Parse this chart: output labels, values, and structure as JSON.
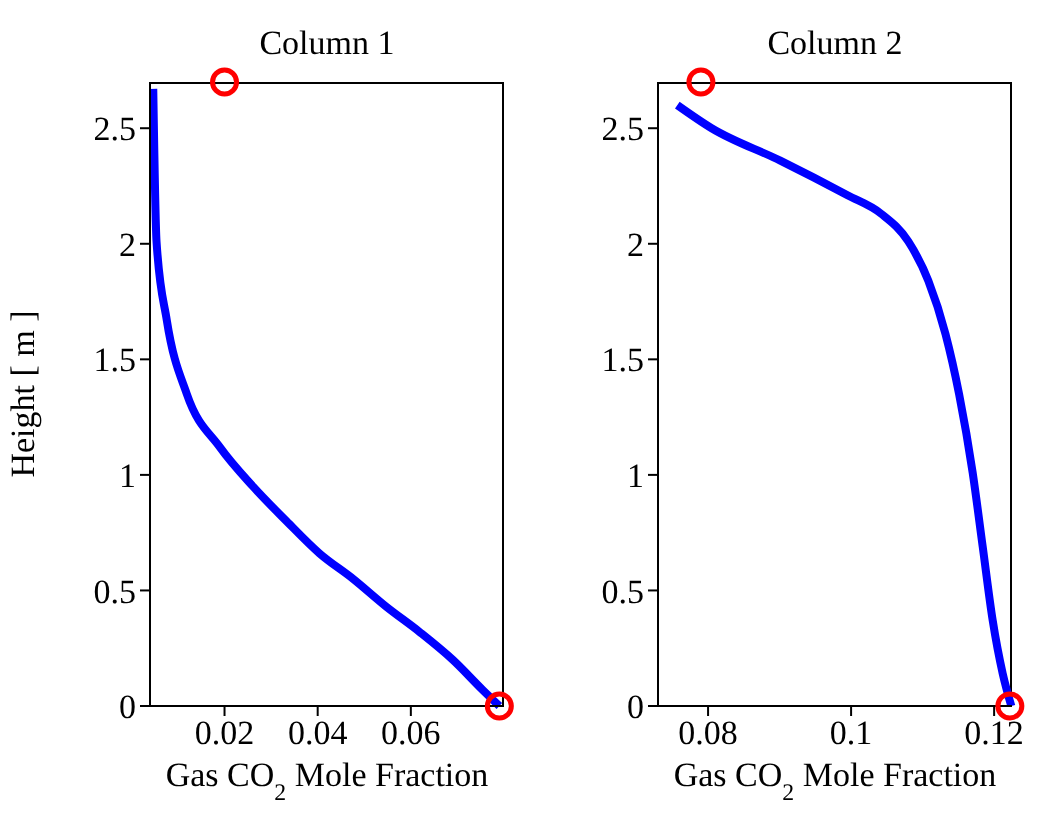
{
  "chart_data": [
    {
      "type": "line",
      "title": "Column 1",
      "xlabel": "Gas CO$_{2}$ Mole Fraction",
      "ylabel": "Height [ m ]",
      "xlim": [
        0.004,
        0.08
      ],
      "ylim": [
        0,
        2.7
      ],
      "xticks": [
        0.02,
        0.04,
        0.06
      ],
      "yticks": [
        0,
        0.5,
        1,
        1.5,
        2,
        2.5
      ],
      "series": [
        {
          "color": "#0000ff",
          "marker": "none",
          "line_style": "solid",
          "x": [
            0.0047,
            0.0054,
            0.0076,
            0.0119,
            0.019,
            0.0261,
            0.0333,
            0.0404,
            0.0476,
            0.0547,
            0.0619,
            0.069,
            0.0754,
            0.079
          ],
          "values": [
            2.67,
            2.01,
            1.67,
            1.35,
            1.12,
            0.95,
            0.8,
            0.66,
            0.55,
            0.43,
            0.32,
            0.2,
            0.07,
            0
          ]
        },
        {
          "type": "scatter",
          "color": "#ff0000",
          "marker": "circle",
          "x": [
            0.02,
            0.079
          ],
          "values": [
            2.7,
            0
          ]
        }
      ]
    },
    {
      "type": "line",
      "title": "Column 2",
      "xlabel": "Gas CO$_{2}$ Mole Fraction",
      "xlim": [
        0.073,
        0.1225
      ],
      "ylim": [
        0,
        2.7
      ],
      "xticks": [
        0.08,
        0.1,
        0.12
      ],
      "yticks": [
        0,
        0.5,
        1,
        1.5,
        2,
        2.5
      ],
      "series": [
        {
          "color": "#0000ff",
          "marker": "none",
          "line_style": "solid",
          "x": [
            0.0757,
            0.0805,
            0.0901,
            0.0995,
            0.1042,
            0.108,
            0.1108,
            0.1132,
            0.1151,
            0.117,
            0.1184,
            0.1198,
            0.1212,
            0.1224
          ],
          "values": [
            2.6,
            2.5,
            2.36,
            2.21,
            2.13,
            2.01,
            1.84,
            1.61,
            1.35,
            1.01,
            0.69,
            0.37,
            0.14,
            0
          ]
        },
        {
          "type": "scatter",
          "color": "#ff0000",
          "marker": "circle",
          "x": [
            0.079,
            0.1222
          ],
          "values": [
            2.7,
            0
          ]
        }
      ]
    }
  ]
}
